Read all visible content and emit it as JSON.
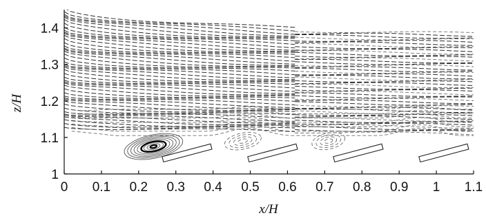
{
  "chart_data": {
    "type": "line",
    "title": "",
    "xlabel": "x/H",
    "ylabel": "z/H",
    "xlim": [
      0,
      1.1
    ],
    "ylim": [
      1,
      1.45
    ],
    "x_ticks": [
      {
        "value": 0,
        "label": "0"
      },
      {
        "value": 0.1,
        "label": "0.1"
      },
      {
        "value": 0.2,
        "label": "0.2"
      },
      {
        "value": 0.3,
        "label": "0.3"
      },
      {
        "value": 0.4,
        "label": "0.4"
      },
      {
        "value": 0.5,
        "label": "0.5"
      },
      {
        "value": 0.6,
        "label": "0.6"
      },
      {
        "value": 0.7,
        "label": "0.7"
      },
      {
        "value": 0.8,
        "label": "0.8"
      },
      {
        "value": 0.9,
        "label": "0.9"
      },
      {
        "value": 1,
        "label": "1"
      },
      {
        "value": 1.1,
        "label": "1.1"
      }
    ],
    "y_ticks": [
      {
        "value": 1,
        "label": "1"
      },
      {
        "value": 1.1,
        "label": "1.1"
      },
      {
        "value": 1.2,
        "label": "1.2"
      },
      {
        "value": 1.3,
        "label": "1.3"
      },
      {
        "value": 1.4,
        "label": "1.4"
      }
    ],
    "grid": false,
    "legend": "none",
    "streamline_style": "dashed",
    "line_color": "#2a2a2a",
    "vortices": [
      {
        "x": 0.24,
        "z": 1.075,
        "rx": 0.08,
        "rz": 0.032,
        "strength": "strong"
      },
      {
        "x": 0.48,
        "z": 1.09,
        "rx": 0.05,
        "rz": 0.022,
        "strength": "weak"
      },
      {
        "x": 0.71,
        "z": 1.09,
        "rx": 0.045,
        "rz": 0.022,
        "strength": "weak"
      }
    ],
    "plates": [
      {
        "x1": 0.265,
        "z1": 1.04,
        "x2": 0.395,
        "z2": 1.075
      },
      {
        "x1": 0.495,
        "z1": 1.04,
        "x2": 0.625,
        "z2": 1.075
      },
      {
        "x1": 0.725,
        "z1": 1.04,
        "x2": 0.855,
        "z2": 1.075
      },
      {
        "x1": 0.955,
        "z1": 1.04,
        "x2": 1.085,
        "z2": 1.075
      }
    ]
  }
}
